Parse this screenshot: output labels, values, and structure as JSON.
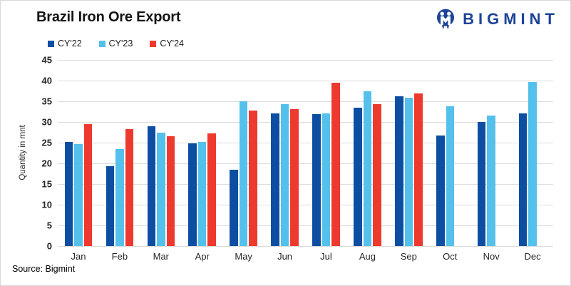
{
  "logo": {
    "text": "BIGMINT",
    "color": "#1c4398",
    "icon": "bigmint-m-circle-icon"
  },
  "footer": {
    "source": "Source: Bigmint"
  },
  "chart_data": {
    "type": "bar",
    "title": "Brazil Iron Ore Export",
    "ylabel": "Quantity in mnt",
    "xlabel": "",
    "ylim": [
      0,
      45
    ],
    "ytick_step": 5,
    "grid": true,
    "legend_position": "top-left",
    "gridline_color": "#dcdcdc",
    "categories": [
      "Jan",
      "Feb",
      "Mar",
      "Apr",
      "May",
      "Jun",
      "Jul",
      "Aug",
      "Sep",
      "Oct",
      "Nov",
      "Dec"
    ],
    "series": [
      {
        "name": "CY'22",
        "color": "#0b4ea2",
        "values": [
          25.2,
          19.3,
          28.9,
          24.8,
          18.5,
          32.0,
          31.9,
          33.4,
          36.2,
          26.7,
          30.0,
          32.1
        ]
      },
      {
        "name": "CY'23",
        "color": "#54c0ec",
        "values": [
          24.6,
          23.5,
          27.4,
          25.1,
          35.0,
          34.3,
          32.1,
          37.4,
          35.8,
          33.8,
          31.6,
          39.7
        ]
      },
      {
        "name": "CY'24",
        "color": "#ee3a2e",
        "values": [
          29.4,
          28.3,
          26.5,
          27.3,
          32.8,
          33.1,
          39.4,
          34.3,
          36.9,
          null,
          null,
          null
        ]
      }
    ]
  }
}
